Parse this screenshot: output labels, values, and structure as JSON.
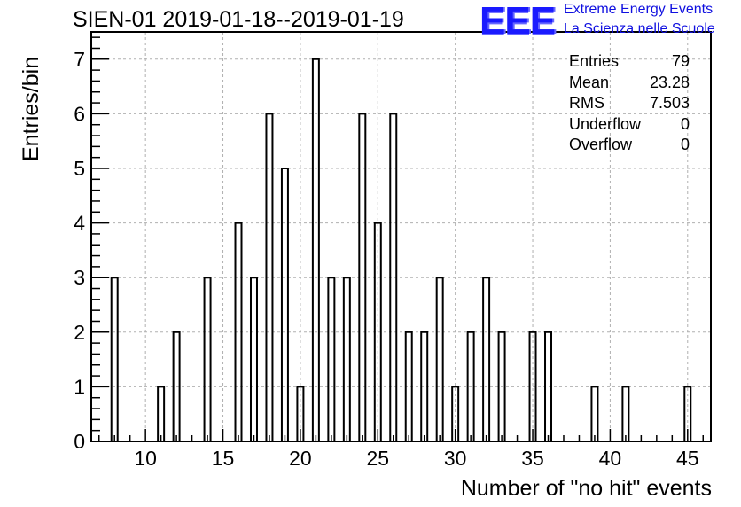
{
  "chart_data": {
    "type": "bar",
    "title": "SIEN-01 2019-01-18--2019-01-19",
    "xlabel": "Number of \"no hit\" events",
    "ylabel": "Entries/bin",
    "xlim": [
      6.5,
      46.5
    ],
    "ylim": [
      0,
      7.5
    ],
    "bin_width": 0.4,
    "xticks": [
      10,
      15,
      20,
      25,
      30,
      35,
      40,
      45
    ],
    "xtick_labels": [
      "10",
      "15",
      "20",
      "25",
      "30",
      "35",
      "40",
      "45"
    ],
    "yticks": [
      0,
      1,
      2,
      3,
      4,
      5,
      6,
      7
    ],
    "ytick_labels": [
      "0",
      "1",
      "2",
      "3",
      "4",
      "5",
      "6",
      "7"
    ],
    "grid": true,
    "x": [
      8,
      11,
      12,
      14,
      16,
      17,
      18,
      19,
      20,
      21,
      22,
      23,
      24,
      25,
      26,
      27,
      28,
      29,
      30,
      31,
      32,
      33,
      35,
      36,
      39,
      41,
      45
    ],
    "values": [
      3,
      1,
      2,
      3,
      4,
      3,
      6,
      5,
      1,
      7,
      3,
      3,
      6,
      4,
      6,
      2,
      2,
      3,
      1,
      2,
      3,
      2,
      2,
      2,
      1,
      1,
      1
    ]
  },
  "stats": [
    {
      "label": "Entries",
      "value": "79"
    },
    {
      "label": "Mean",
      "value": "23.28"
    },
    {
      "label": "RMS",
      "value": "7.503"
    },
    {
      "label": "Underflow",
      "value": "0"
    },
    {
      "label": "Overflow",
      "value": "0"
    }
  ],
  "logo": {
    "mark": "EEE",
    "line1": "Extreme Energy Events",
    "line2": "La Scienza nelle Scuole",
    "color": "#1a1aff"
  }
}
